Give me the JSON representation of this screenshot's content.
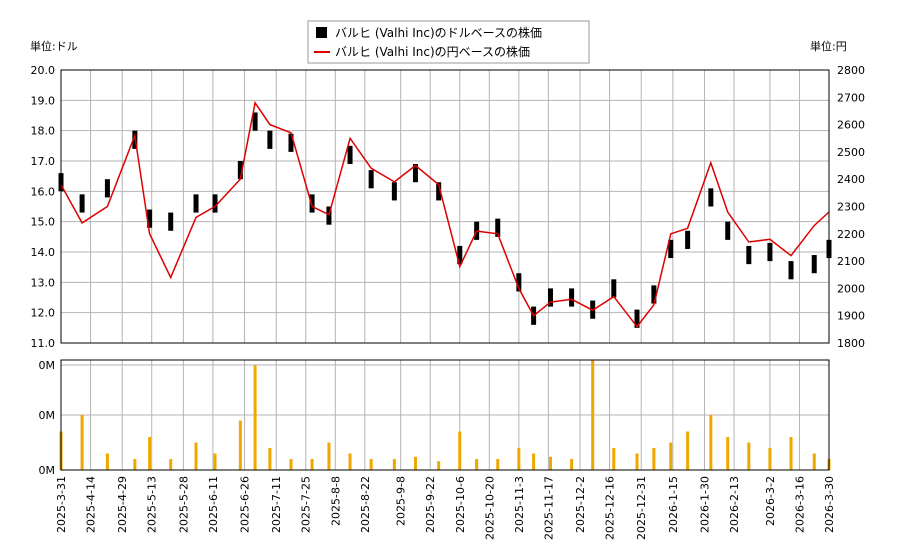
{
  "legend": {
    "usd_label": "バルヒ (Valhi Inc)のドルベースの株価",
    "jpy_label": "バルヒ (Valhi Inc)の円ベースの株価"
  },
  "axis_labels": {
    "left": "単位:ドル",
    "right": "単位:円"
  },
  "colors": {
    "usd": "#000000",
    "jpy": "#dd0000",
    "volume": "#f0a800",
    "grid": "#b4b4b4"
  },
  "chart_data": [
    {
      "type": "line",
      "title": "",
      "ylabel": "単位:ドル",
      "y2label": "単位:円",
      "ylim": [
        11.0,
        20.0
      ],
      "y2lim": [
        1800,
        2800
      ],
      "yticks": [
        "20.0",
        "19.0",
        "18.0",
        "17.0",
        "16.0",
        "15.0",
        "14.0",
        "13.0",
        "12.0",
        "11.0"
      ],
      "y2ticks": [
        "2800",
        "2700",
        "2600",
        "2500",
        "2400",
        "2300",
        "2200",
        "2100",
        "2000",
        "1900",
        "1800"
      ],
      "grid": true,
      "legend_position": "top-center",
      "series": [
        {
          "name": "バルヒ (Valhi Inc)のドルベースの株価",
          "style": "ohlc-bars",
          "x": [
            "2025-03-31",
            "2025-04-10",
            "2025-04-22",
            "2025-05-05",
            "2025-05-12",
            "2025-05-22",
            "2025-06-03",
            "2025-06-12",
            "2025-06-24",
            "2025-07-01",
            "2025-07-08",
            "2025-07-18",
            "2025-07-28",
            "2025-08-05",
            "2025-08-15",
            "2025-08-25",
            "2025-09-05",
            "2025-09-15",
            "2025-09-26",
            "2025-10-06",
            "2025-10-14",
            "2025-10-24",
            "2025-11-03",
            "2025-11-10",
            "2025-11-18",
            "2025-11-28",
            "2025-12-08",
            "2025-12-18",
            "2025-12-29",
            "2026-01-06",
            "2026-01-14",
            "2026-01-22",
            "2026-02-02",
            "2026-02-10",
            "2026-02-20",
            "2026-03-02",
            "2026-03-12",
            "2026-03-23",
            "2026-03-30"
          ],
          "values": [
            16.3,
            15.6,
            16.1,
            17.7,
            15.1,
            15.0,
            15.6,
            15.6,
            16.7,
            18.3,
            17.7,
            17.6,
            15.6,
            15.2,
            17.2,
            16.4,
            16.0,
            16.6,
            16.0,
            13.9,
            14.7,
            14.8,
            13.0,
            11.9,
            12.5,
            12.5,
            12.1,
            12.8,
            11.8,
            12.6,
            14.1,
            14.4,
            15.8,
            14.7,
            13.9,
            14.0,
            13.4,
            13.6,
            14.1
          ]
        },
        {
          "name": "バルヒ (Valhi Inc)の円ベースの株価",
          "style": "line",
          "axis": "right",
          "x": [
            "2025-03-31",
            "2025-04-10",
            "2025-04-22",
            "2025-05-05",
            "2025-05-12",
            "2025-05-22",
            "2025-06-03",
            "2025-06-12",
            "2025-06-24",
            "2025-07-01",
            "2025-07-08",
            "2025-07-18",
            "2025-07-28",
            "2025-08-05",
            "2025-08-15",
            "2025-08-25",
            "2025-09-05",
            "2025-09-15",
            "2025-09-26",
            "2025-10-06",
            "2025-10-14",
            "2025-10-24",
            "2025-11-03",
            "2025-11-10",
            "2025-11-18",
            "2025-11-28",
            "2025-12-08",
            "2025-12-18",
            "2025-12-29",
            "2026-01-06",
            "2026-01-14",
            "2026-01-22",
            "2026-02-02",
            "2026-02-10",
            "2026-02-20",
            "2026-03-02",
            "2026-03-12",
            "2026-03-23",
            "2026-03-30"
          ],
          "values": [
            2380,
            2240,
            2300,
            2560,
            2200,
            2040,
            2260,
            2300,
            2400,
            2680,
            2600,
            2570,
            2300,
            2270,
            2550,
            2440,
            2390,
            2450,
            2380,
            2080,
            2210,
            2200,
            2000,
            1900,
            1950,
            1960,
            1920,
            1970,
            1860,
            1940,
            2200,
            2220,
            2460,
            2280,
            2170,
            2180,
            2120,
            2230,
            2280
          ]
        }
      ]
    },
    {
      "type": "bar",
      "title": "",
      "yticks": [
        "0M",
        "0M",
        "0M"
      ],
      "note": "volume",
      "grid": true,
      "x": [
        "2025-03-31",
        "2025-04-10",
        "2025-04-22",
        "2025-05-05",
        "2025-05-12",
        "2025-05-22",
        "2025-06-03",
        "2025-06-12",
        "2025-06-24",
        "2025-07-01",
        "2025-07-08",
        "2025-07-18",
        "2025-07-28",
        "2025-08-05",
        "2025-08-15",
        "2025-08-25",
        "2025-09-05",
        "2025-09-15",
        "2025-09-26",
        "2025-10-06",
        "2025-10-14",
        "2025-10-24",
        "2025-11-03",
        "2025-11-10",
        "2025-11-18",
        "2025-11-28",
        "2025-12-08",
        "2025-12-18",
        "2025-12-29",
        "2026-01-06",
        "2026-01-14",
        "2026-01-22",
        "2026-02-02",
        "2026-02-10",
        "2026-02-20",
        "2026-03-02",
        "2026-03-12",
        "2026-03-23",
        "2026-03-30"
      ],
      "values": [
        0.35,
        0.5,
        0.15,
        0.1,
        0.3,
        0.1,
        0.25,
        0.15,
        0.45,
        0.95,
        0.2,
        0.1,
        0.1,
        0.25,
        0.15,
        0.1,
        0.1,
        0.12,
        0.08,
        0.35,
        0.1,
        0.1,
        0.2,
        0.15,
        0.12,
        0.1,
        1.0,
        0.2,
        0.15,
        0.2,
        0.25,
        0.35,
        0.5,
        0.3,
        0.25,
        0.2,
        0.3,
        0.15,
        0.1
      ],
      "xticks": [
        "2025-3-31",
        "2025-4-14",
        "2025-4-29",
        "2025-5-13",
        "2025-5-28",
        "2025-6-11",
        "2025-6-26",
        "2025-7-11",
        "2025-7-25",
        "2025-8-8",
        "2025-8-22",
        "2025-9-8",
        "2025-9-22",
        "2025-10-6",
        "2025-10-20",
        "2025-11-3",
        "2025-11-17",
        "2025-12-2",
        "2025-12-16",
        "2025-12-31",
        "2026-1-15",
        "2026-1-30",
        "2026-2-13",
        "2026-3-2",
        "2026-3-16",
        "2026-3-30"
      ]
    }
  ]
}
